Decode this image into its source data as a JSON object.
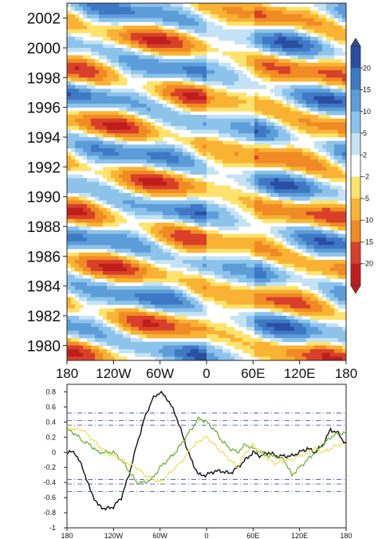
{
  "chart_data": [
    {
      "type": "heatmap",
      "title": "",
      "xlabel": "",
      "ylabel": "",
      "x_ticks": [
        "180",
        "120W",
        "60W",
        "0",
        "60E",
        "120E",
        "180"
      ],
      "y_ticks": [
        "1980",
        "1982",
        "1984",
        "1986",
        "1988",
        "1990",
        "1992",
        "1994",
        "1996",
        "1998",
        "2000",
        "2002"
      ],
      "xlim": [
        -180,
        180
      ],
      "ylim": [
        1979,
        2003
      ],
      "colorbar": {
        "levels": [
          "20",
          "15",
          "10",
          "5",
          "2",
          "-2",
          "-5",
          "-10",
          "-15",
          "-20"
        ],
        "colors": [
          "#2a4fa3",
          "#3f78c4",
          "#5c9dd9",
          "#8cc3ea",
          "#c4e2f5",
          "#ffffff",
          "#fde36b",
          "#f9b233",
          "#f08a24",
          "#d8402a",
          "#c01d1d"
        ]
      }
    },
    {
      "type": "line",
      "title": "",
      "xlabel": "",
      "ylabel": "",
      "x_ticks": [
        "180",
        "120W",
        "60W",
        "0",
        "60E",
        "120E",
        "180"
      ],
      "y_ticks": [
        "-1",
        "-0.8",
        "-0.6",
        "-0.4",
        "-0.2",
        "0",
        "0.2",
        "0.4",
        "0.6",
        "0.8"
      ],
      "xlim": [
        -180,
        180
      ],
      "ylim": [
        -1,
        0.9
      ],
      "reference_lines": [
        0.52,
        0.42,
        0.36,
        -0.36,
        -0.42,
        -0.52
      ],
      "series": [
        {
          "color": "#111111",
          "x": [
            -180,
            -170,
            -160,
            -150,
            -140,
            -130,
            -120,
            -110,
            -100,
            -90,
            -80,
            -70,
            -60,
            -50,
            -40,
            -30,
            -20,
            -10,
            0,
            10,
            20,
            30,
            40,
            50,
            60,
            70,
            80,
            90,
            100,
            110,
            120,
            130,
            140,
            150,
            160,
            170,
            180
          ],
          "y": [
            0.0,
            0.0,
            -0.2,
            -0.5,
            -0.7,
            -0.75,
            -0.72,
            -0.6,
            -0.3,
            0.1,
            0.45,
            0.7,
            0.8,
            0.7,
            0.5,
            0.2,
            -0.1,
            -0.3,
            -0.3,
            -0.25,
            -0.25,
            -0.28,
            -0.2,
            -0.1,
            0.0,
            -0.05,
            0.0,
            -0.05,
            -0.05,
            -0.05,
            0.0,
            0.05,
            0.0,
            0.1,
            0.3,
            0.25,
            0.1
          ]
        },
        {
          "color": "#6aaa2a",
          "x": [
            -180,
            -170,
            -160,
            -150,
            -140,
            -130,
            -120,
            -110,
            -100,
            -90,
            -80,
            -70,
            -60,
            -50,
            -40,
            -30,
            -20,
            -10,
            0,
            10,
            20,
            30,
            40,
            50,
            60,
            70,
            80,
            90,
            100,
            110,
            120,
            130,
            140,
            150,
            160,
            170,
            180
          ],
          "y": [
            0.3,
            0.25,
            0.15,
            0.1,
            0.0,
            0.0,
            0.0,
            -0.1,
            -0.25,
            -0.4,
            -0.4,
            -0.35,
            -0.2,
            -0.1,
            0.0,
            0.15,
            0.3,
            0.45,
            0.4,
            0.3,
            0.15,
            0.05,
            0.0,
            0.1,
            0.05,
            0.0,
            -0.05,
            -0.05,
            -0.1,
            -0.3,
            -0.2,
            -0.1,
            0.0,
            0.1,
            0.2,
            0.25,
            0.25
          ]
        },
        {
          "color": "#e8e060",
          "x": [
            -180,
            -170,
            -160,
            -150,
            -140,
            -130,
            -120,
            -110,
            -100,
            -90,
            -80,
            -70,
            -60,
            -50,
            -40,
            -30,
            -20,
            -10,
            0,
            10,
            20,
            30,
            40,
            50,
            60,
            70,
            80,
            90,
            100,
            110,
            120,
            130,
            140,
            150,
            160,
            170,
            180
          ],
          "y": [
            0.35,
            0.3,
            0.3,
            0.2,
            0.1,
            0.0,
            -0.05,
            -0.1,
            -0.15,
            -0.2,
            -0.3,
            -0.35,
            -0.4,
            -0.3,
            -0.2,
            -0.1,
            0.05,
            0.15,
            0.2,
            0.1,
            0.0,
            -0.1,
            -0.2,
            0.0,
            0.1,
            0.0,
            -0.1,
            -0.15,
            -0.1,
            -0.1,
            -0.05,
            0.0,
            0.05,
            0.0,
            0.05,
            0.1,
            0.1
          ]
        }
      ]
    }
  ]
}
